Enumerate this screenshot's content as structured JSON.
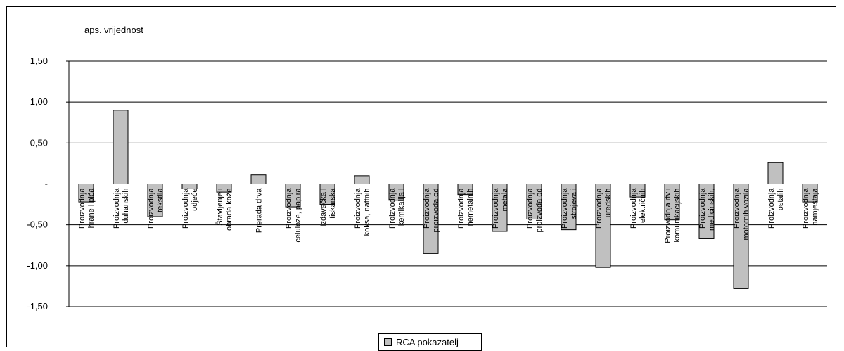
{
  "chart_data": {
    "type": "bar",
    "ylabel": "aps. vrijednost",
    "ylim": [
      -1.5,
      1.5
    ],
    "yticks": [
      1.5,
      1.0,
      0.5,
      0,
      -0.5,
      -1.0,
      -1.5
    ],
    "ytick_labels": [
      "1,50",
      "1,00",
      "0,50",
      "-",
      "-0,50",
      "-1,00",
      "-1,50"
    ],
    "grid": true,
    "legend_position": "bottom",
    "bar_color": "#c0c0c0",
    "categories": [
      [
        "Proizvodnja",
        "hrane i pića"
      ],
      [
        "Proizvodnja",
        "duhanskih"
      ],
      [
        "Proizvodnja",
        "tekstila"
      ],
      [
        "Proizvodnja",
        "odjeće"
      ],
      [
        "Štavljenje i",
        "obrada kože"
      ],
      [
        "Prerada drva"
      ],
      [
        "Proizvodnja",
        "celuloze, papira"
      ],
      [
        "Izdavačka i",
        "tiskarska"
      ],
      [
        "Proizvodnja",
        "koksa, naftnih"
      ],
      [
        "Proizvodnja",
        "kemikalija i"
      ],
      [
        "Proizvodnja",
        "proizvoda od"
      ],
      [
        "Proizvodnja",
        "nemetalnih"
      ],
      [
        "Proizvodnja",
        "metala"
      ],
      [
        "Proizvodnja",
        "proizvoda od"
      ],
      [
        "Proizvodnja",
        "strojeva i"
      ],
      [
        "Proizvodnja",
        "uredskih"
      ],
      [
        "Proizvodnja",
        "električnih"
      ],
      [
        "Proizvodnja rtv i",
        "komunikacijskih"
      ],
      [
        "Proizvodnja",
        "medicinskih,"
      ],
      [
        "Proizvodnja",
        "motornih vozila"
      ],
      [
        "Proizvodnja",
        "ostalih"
      ],
      [
        "Proizvodnja",
        "namještaja"
      ]
    ],
    "series": [
      {
        "name": "RCA pokazatelj",
        "values": [
          -0.22,
          0.9,
          -0.4,
          -0.06,
          -0.1,
          0.11,
          -0.28,
          -0.25,
          0.1,
          -0.2,
          -0.85,
          -0.13,
          -0.58,
          -0.43,
          -0.56,
          -1.02,
          -0.16,
          -0.44,
          -0.67,
          -1.28,
          0.26,
          -0.22
        ]
      }
    ]
  }
}
